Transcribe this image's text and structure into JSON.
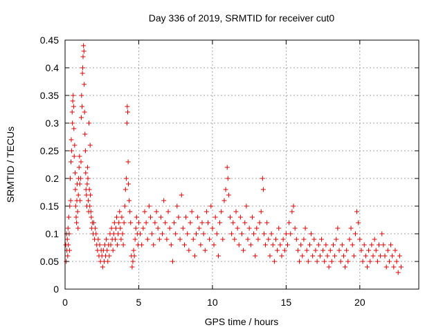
{
  "chart_data": {
    "type": "scatter",
    "title": "Day 336 of 2019, SRMTID for receiver cut0",
    "xlabel": "GPS time / hours",
    "ylabel": "SRMTID / TECUs",
    "xlim": [
      0,
      24
    ],
    "ylim": [
      0,
      0.45
    ],
    "xticks": [
      0,
      5,
      10,
      15,
      20
    ],
    "xtick_labels": [
      "0",
      "5",
      "10",
      "15",
      "20"
    ],
    "yticks": [
      0,
      0.05,
      0.1,
      0.15,
      0.2,
      0.25,
      0.3,
      0.35,
      0.4,
      0.45
    ],
    "ytick_labels": [
      "0",
      "0.05",
      "0.1",
      "0.15",
      "0.2",
      "0.25",
      "0.3",
      "0.35",
      "0.4",
      "0.45"
    ],
    "grid": true,
    "marker": "+",
    "series": [
      {
        "name": "SRMTID",
        "color": "#dd0000",
        "points": [
          [
            0.05,
            0.08
          ],
          [
            0.08,
            0.05
          ],
          [
            0.1,
            0.1
          ],
          [
            0.12,
            0.07
          ],
          [
            0.15,
            0.09
          ],
          [
            0.18,
            0.06
          ],
          [
            0.2,
            0.11
          ],
          [
            0.22,
            0.08
          ],
          [
            0.25,
            0.13
          ],
          [
            0.28,
            0.1
          ],
          [
            0.3,
            0.07
          ],
          [
            0.32,
            0.15
          ],
          [
            0.35,
            0.2
          ],
          [
            0.38,
            0.16
          ],
          [
            0.4,
            0.23
          ],
          [
            0.42,
            0.27
          ],
          [
            0.45,
            0.25
          ],
          [
            0.48,
            0.32
          ],
          [
            0.5,
            0.3
          ],
          [
            0.52,
            0.34
          ],
          [
            0.55,
            0.35
          ],
          [
            0.58,
            0.33
          ],
          [
            0.6,
            0.29
          ],
          [
            0.62,
            0.24
          ],
          [
            0.65,
            0.26
          ],
          [
            0.68,
            0.21
          ],
          [
            0.7,
            0.18
          ],
          [
            0.72,
            0.15
          ],
          [
            0.75,
            0.13
          ],
          [
            0.78,
            0.12
          ],
          [
            0.8,
            0.16
          ],
          [
            0.82,
            0.19
          ],
          [
            0.85,
            0.14
          ],
          [
            0.88,
            0.11
          ],
          [
            0.9,
            0.17
          ],
          [
            0.92,
            0.2
          ],
          [
            0.95,
            0.22
          ],
          [
            0.98,
            0.24
          ],
          [
            1.0,
            0.19
          ],
          [
            1.02,
            0.16
          ],
          [
            1.05,
            0.2
          ],
          [
            1.08,
            0.23
          ],
          [
            1.1,
            0.31
          ],
          [
            1.12,
            0.35
          ],
          [
            1.15,
            0.33
          ],
          [
            1.18,
            0.39
          ],
          [
            1.2,
            0.4
          ],
          [
            1.22,
            0.42
          ],
          [
            1.25,
            0.44
          ],
          [
            1.28,
            0.43
          ],
          [
            1.3,
            0.37
          ],
          [
            1.32,
            0.32
          ],
          [
            1.35,
            0.28
          ],
          [
            1.38,
            0.25
          ],
          [
            1.4,
            0.21
          ],
          [
            1.42,
            0.18
          ],
          [
            1.45,
            0.17
          ],
          [
            1.48,
            0.15
          ],
          [
            1.5,
            0.19
          ],
          [
            1.52,
            0.22
          ],
          [
            1.55,
            0.2
          ],
          [
            1.58,
            0.16
          ],
          [
            1.6,
            0.14
          ],
          [
            1.62,
            0.3
          ],
          [
            1.65,
            0.18
          ],
          [
            1.68,
            0.15
          ],
          [
            1.7,
            0.26
          ],
          [
            1.72,
            0.17
          ],
          [
            1.75,
            0.14
          ],
          [
            1.78,
            0.13
          ],
          [
            1.8,
            0.11
          ],
          [
            1.85,
            0.12
          ],
          [
            1.9,
            0.1
          ],
          [
            1.95,
            0.12
          ],
          [
            2.0,
            0.09
          ],
          [
            2.05,
            0.11
          ],
          [
            2.1,
            0.1
          ],
          [
            2.15,
            0.08
          ],
          [
            2.2,
            0.07
          ],
          [
            2.25,
            0.09
          ],
          [
            2.3,
            0.06
          ],
          [
            2.35,
            0.08
          ],
          [
            2.4,
            0.05
          ],
          [
            2.45,
            0.07
          ],
          [
            2.5,
            0.06
          ],
          [
            2.55,
            0.04
          ],
          [
            2.6,
            0.07
          ],
          [
            2.65,
            0.05
          ],
          [
            2.7,
            0.08
          ],
          [
            2.75,
            0.06
          ],
          [
            2.8,
            0.09
          ],
          [
            2.85,
            0.07
          ],
          [
            2.9,
            0.05
          ],
          [
            2.95,
            0.08
          ],
          [
            3.0,
            0.06
          ],
          [
            3.05,
            0.1
          ],
          [
            3.1,
            0.08
          ],
          [
            3.15,
            0.11
          ],
          [
            3.2,
            0.09
          ],
          [
            3.25,
            0.07
          ],
          [
            3.3,
            0.1
          ],
          [
            3.35,
            0.12
          ],
          [
            3.4,
            0.09
          ],
          [
            3.45,
            0.11
          ],
          [
            3.5,
            0.13
          ],
          [
            3.55,
            0.08
          ],
          [
            3.6,
            0.1
          ],
          [
            3.65,
            0.12
          ],
          [
            3.7,
            0.14
          ],
          [
            3.75,
            0.11
          ],
          [
            3.8,
            0.09
          ],
          [
            3.85,
            0.13
          ],
          [
            3.9,
            0.1
          ],
          [
            3.95,
            0.08
          ],
          [
            4.0,
            0.12
          ],
          [
            4.05,
            0.15
          ],
          [
            4.1,
            0.18
          ],
          [
            4.15,
            0.2
          ],
          [
            4.2,
            0.3
          ],
          [
            4.22,
            0.33
          ],
          [
            4.25,
            0.32
          ],
          [
            4.28,
            0.23
          ],
          [
            4.3,
            0.19
          ],
          [
            4.35,
            0.16
          ],
          [
            4.4,
            0.14
          ],
          [
            4.45,
            0.12
          ],
          [
            4.5,
            0.06
          ],
          [
            4.55,
            0.04
          ],
          [
            4.6,
            0.05
          ],
          [
            4.65,
            0.07
          ],
          [
            4.7,
            0.06
          ],
          [
            4.75,
            0.09
          ],
          [
            4.8,
            0.11
          ],
          [
            4.85,
            0.13
          ],
          [
            4.9,
            0.1
          ],
          [
            4.95,
            0.08
          ],
          [
            5.0,
            0.12
          ],
          [
            5.1,
            0.1
          ],
          [
            5.2,
            0.08
          ],
          [
            5.3,
            0.11
          ],
          [
            5.4,
            0.14
          ],
          [
            5.5,
            0.12
          ],
          [
            5.6,
            0.09
          ],
          [
            5.7,
            0.15
          ],
          [
            5.8,
            0.13
          ],
          [
            5.9,
            0.1
          ],
          [
            6.0,
            0.08
          ],
          [
            6.1,
            0.12
          ],
          [
            6.2,
            0.14
          ],
          [
            6.3,
            0.11
          ],
          [
            6.4,
            0.09
          ],
          [
            6.5,
            0.13
          ],
          [
            6.6,
            0.1
          ],
          [
            6.7,
            0.16
          ],
          [
            6.8,
            0.12
          ],
          [
            6.9,
            0.09
          ],
          [
            7.0,
            0.14
          ],
          [
            7.1,
            0.11
          ],
          [
            7.2,
            0.08
          ],
          [
            7.3,
            0.05
          ],
          [
            7.4,
            0.12
          ],
          [
            7.5,
            0.1
          ],
          [
            7.6,
            0.15
          ],
          [
            7.7,
            0.13
          ],
          [
            7.8,
            0.09
          ],
          [
            7.9,
            0.17
          ],
          [
            8.0,
            0.11
          ],
          [
            8.1,
            0.08
          ],
          [
            8.2,
            0.13
          ],
          [
            8.3,
            0.1
          ],
          [
            8.4,
            0.07
          ],
          [
            8.5,
            0.12
          ],
          [
            8.6,
            0.14
          ],
          [
            8.7,
            0.09
          ],
          [
            8.8,
            0.06
          ],
          [
            8.9,
            0.1
          ],
          [
            9.0,
            0.13
          ],
          [
            9.1,
            0.11
          ],
          [
            9.2,
            0.08
          ],
          [
            9.3,
            0.12
          ],
          [
            9.4,
            0.1
          ],
          [
            9.5,
            0.07
          ],
          [
            9.6,
            0.14
          ],
          [
            9.7,
            0.12
          ],
          [
            9.8,
            0.09
          ],
          [
            9.9,
            0.15
          ],
          [
            10.0,
            0.11
          ],
          [
            10.1,
            0.08
          ],
          [
            10.2,
            0.13
          ],
          [
            10.3,
            0.1
          ],
          [
            10.4,
            0.06
          ],
          [
            10.5,
            0.12
          ],
          [
            10.6,
            0.14
          ],
          [
            10.7,
            0.09
          ],
          [
            10.8,
            0.16
          ],
          [
            10.9,
            0.18
          ],
          [
            11.0,
            0.22
          ],
          [
            11.05,
            0.2
          ],
          [
            11.1,
            0.17
          ],
          [
            11.2,
            0.13
          ],
          [
            11.3,
            0.1
          ],
          [
            11.4,
            0.12
          ],
          [
            11.5,
            0.09
          ],
          [
            11.6,
            0.14
          ],
          [
            11.7,
            0.11
          ],
          [
            11.8,
            0.08
          ],
          [
            11.9,
            0.13
          ],
          [
            12.0,
            0.1
          ],
          [
            12.1,
            0.07
          ],
          [
            12.2,
            0.12
          ],
          [
            12.3,
            0.15
          ],
          [
            12.4,
            0.09
          ],
          [
            12.5,
            0.11
          ],
          [
            12.6,
            0.08
          ],
          [
            12.7,
            0.13
          ],
          [
            12.8,
            0.1
          ],
          [
            12.9,
            0.06
          ],
          [
            13.0,
            0.11
          ],
          [
            13.1,
            0.09
          ],
          [
            13.2,
            0.12
          ],
          [
            13.3,
            0.14
          ],
          [
            13.4,
            0.2
          ],
          [
            13.45,
            0.18
          ],
          [
            13.5,
            0.1
          ],
          [
            13.6,
            0.08
          ],
          [
            13.7,
            0.12
          ],
          [
            13.8,
            0.09
          ],
          [
            13.9,
            0.06
          ],
          [
            14.0,
            0.1
          ],
          [
            14.1,
            0.08
          ],
          [
            14.2,
            0.05
          ],
          [
            14.3,
            0.09
          ],
          [
            14.4,
            0.07
          ],
          [
            14.5,
            0.11
          ],
          [
            14.6,
            0.08
          ],
          [
            14.7,
            0.06
          ],
          [
            14.8,
            0.09
          ],
          [
            14.9,
            0.07
          ],
          [
            15.0,
            0.1
          ],
          [
            15.1,
            0.08
          ],
          [
            15.2,
            0.12
          ],
          [
            15.3,
            0.1
          ],
          [
            15.4,
            0.14
          ],
          [
            15.5,
            0.15
          ],
          [
            15.6,
            0.11
          ],
          [
            15.7,
            0.09
          ],
          [
            15.8,
            0.07
          ],
          [
            15.9,
            0.05
          ],
          [
            16.0,
            0.08
          ],
          [
            16.1,
            0.06
          ],
          [
            16.2,
            0.09
          ],
          [
            16.3,
            0.11
          ],
          [
            16.4,
            0.07
          ],
          [
            16.5,
            0.05
          ],
          [
            16.6,
            0.08
          ],
          [
            16.7,
            0.1
          ],
          [
            16.8,
            0.06
          ],
          [
            16.9,
            0.09
          ],
          [
            17.0,
            0.07
          ],
          [
            17.1,
            0.05
          ],
          [
            17.2,
            0.08
          ],
          [
            17.3,
            0.06
          ],
          [
            17.4,
            0.09
          ],
          [
            17.5,
            0.07
          ],
          [
            17.6,
            0.05
          ],
          [
            17.7,
            0.08
          ],
          [
            17.8,
            0.06
          ],
          [
            17.9,
            0.04
          ],
          [
            18.0,
            0.07
          ],
          [
            18.1,
            0.05
          ],
          [
            18.2,
            0.08
          ],
          [
            18.3,
            0.06
          ],
          [
            18.4,
            0.09
          ],
          [
            18.5,
            0.11
          ],
          [
            18.6,
            0.07
          ],
          [
            18.7,
            0.05
          ],
          [
            18.8,
            0.08
          ],
          [
            18.9,
            0.06
          ],
          [
            19.0,
            0.04
          ],
          [
            19.1,
            0.07
          ],
          [
            19.2,
            0.05
          ],
          [
            19.3,
            0.09
          ],
          [
            19.4,
            0.11
          ],
          [
            19.5,
            0.08
          ],
          [
            19.6,
            0.06
          ],
          [
            19.7,
            0.1
          ],
          [
            19.8,
            0.14
          ],
          [
            19.9,
            0.12
          ],
          [
            20.0,
            0.09
          ],
          [
            20.1,
            0.07
          ],
          [
            20.2,
            0.05
          ],
          [
            20.3,
            0.08
          ],
          [
            20.4,
            0.06
          ],
          [
            20.5,
            0.04
          ],
          [
            20.6,
            0.07
          ],
          [
            20.7,
            0.05
          ],
          [
            20.8,
            0.08
          ],
          [
            20.9,
            0.06
          ],
          [
            21.0,
            0.09
          ],
          [
            21.1,
            0.07
          ],
          [
            21.2,
            0.05
          ],
          [
            21.3,
            0.08
          ],
          [
            21.4,
            0.06
          ],
          [
            21.5,
            0.1
          ],
          [
            21.6,
            0.08
          ],
          [
            21.7,
            0.06
          ],
          [
            21.8,
            0.04
          ],
          [
            21.9,
            0.07
          ],
          [
            22.0,
            0.05
          ],
          [
            22.1,
            0.08
          ],
          [
            22.2,
            0.06
          ],
          [
            22.3,
            0.04
          ],
          [
            22.4,
            0.07
          ],
          [
            22.5,
            0.05
          ],
          [
            22.6,
            0.03
          ],
          [
            22.7,
            0.06
          ],
          [
            22.8,
            0.04
          ]
        ]
      }
    ]
  }
}
